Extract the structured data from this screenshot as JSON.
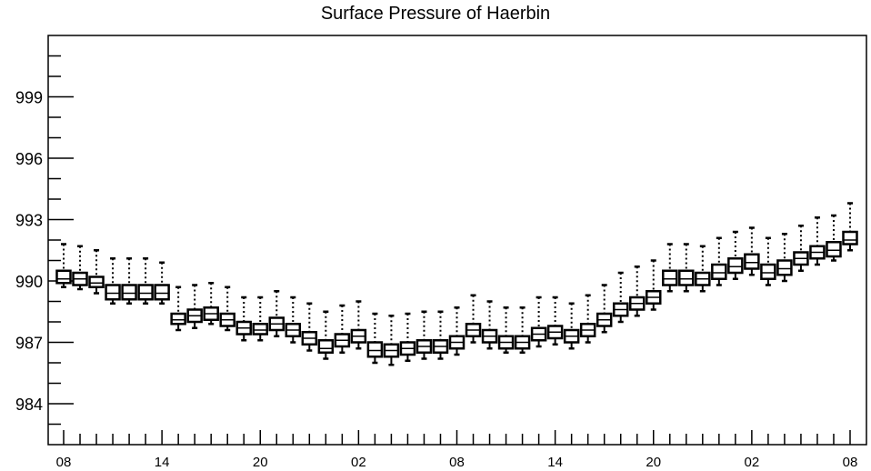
{
  "chart_data": {
    "type": "box",
    "title": "Surface Pressure of Haerbin",
    "xlabel": "",
    "ylabel": "",
    "ylim": [
      982,
      1002
    ],
    "yticks": [
      984,
      987,
      990,
      993,
      996,
      999
    ],
    "xtick_labels": [
      "08",
      "14",
      "20",
      "02",
      "08",
      "14",
      "20",
      "02",
      "08"
    ],
    "x_hours": [
      "08",
      "09",
      "10",
      "11",
      "12",
      "13",
      "14",
      "15",
      "16",
      "17",
      "18",
      "19",
      "20",
      "21",
      "22",
      "23",
      "00",
      "01",
      "02",
      "03",
      "04",
      "05",
      "06",
      "07",
      "08",
      "09",
      "10",
      "11",
      "12",
      "13",
      "14",
      "15",
      "16",
      "17",
      "18",
      "19",
      "20",
      "21",
      "22",
      "23",
      "00",
      "01",
      "02",
      "03",
      "04",
      "05",
      "06",
      "07",
      "08"
    ],
    "series": [
      {
        "median": [
          990.1,
          990.1,
          989.9,
          989.4,
          989.4,
          989.4,
          989.4,
          988.1,
          988.3,
          988.4,
          988.1,
          987.7,
          987.6,
          987.9,
          987.6,
          987.2,
          986.7,
          987.1,
          987.3,
          986.6,
          986.6,
          986.7,
          986.8,
          986.8,
          987.0,
          987.6,
          987.3,
          987.0,
          987.0,
          987.4,
          987.5,
          987.3,
          987.6,
          988.1,
          988.6,
          988.9,
          989.2,
          990.1,
          990.1,
          990.1,
          990.4,
          990.7,
          990.9,
          990.4,
          990.6,
          991.1,
          991.4,
          991.5,
          992.0
        ],
        "q1": [
          989.9,
          989.8,
          989.7,
          989.1,
          989.1,
          989.1,
          989.1,
          987.9,
          988.0,
          988.1,
          987.8,
          987.4,
          987.4,
          987.6,
          987.3,
          986.9,
          986.5,
          986.8,
          987.0,
          986.3,
          986.3,
          986.4,
          986.5,
          986.5,
          986.7,
          987.3,
          987.0,
          986.7,
          986.7,
          987.1,
          987.2,
          987.0,
          987.3,
          987.8,
          988.3,
          988.6,
          988.9,
          989.8,
          989.8,
          989.8,
          990.1,
          990.4,
          990.6,
          990.1,
          990.3,
          990.8,
          991.1,
          991.2,
          991.8
        ],
        "q3": [
          990.5,
          990.4,
          990.2,
          989.8,
          989.8,
          989.8,
          989.8,
          988.4,
          988.6,
          988.7,
          988.4,
          988.0,
          987.9,
          988.2,
          987.9,
          987.5,
          987.1,
          987.4,
          987.6,
          987.0,
          986.9,
          987.0,
          987.1,
          987.1,
          987.3,
          987.9,
          987.6,
          987.3,
          987.3,
          987.7,
          987.8,
          987.6,
          987.9,
          988.4,
          988.9,
          989.2,
          989.5,
          990.5,
          990.5,
          990.4,
          990.8,
          991.1,
          991.3,
          990.8,
          991.0,
          991.4,
          991.7,
          991.9,
          992.4
        ],
        "low": [
          989.7,
          989.6,
          989.4,
          988.9,
          988.9,
          988.9,
          988.9,
          987.6,
          987.7,
          987.9,
          987.6,
          987.1,
          987.1,
          987.3,
          987.0,
          986.6,
          986.2,
          986.5,
          986.7,
          986.0,
          985.9,
          986.1,
          986.2,
          986.2,
          986.4,
          987.0,
          986.7,
          986.5,
          986.5,
          986.8,
          986.9,
          986.7,
          987.0,
          987.5,
          988.0,
          988.3,
          988.6,
          989.5,
          989.5,
          989.5,
          989.8,
          990.1,
          990.3,
          989.8,
          990.0,
          990.5,
          990.8,
          991.0,
          991.5
        ],
        "high": [
          991.8,
          991.7,
          991.5,
          991.1,
          991.1,
          991.1,
          990.9,
          989.7,
          989.8,
          989.9,
          989.7,
          989.2,
          989.2,
          989.5,
          989.2,
          988.9,
          988.5,
          988.8,
          989.0,
          988.4,
          988.3,
          988.4,
          988.5,
          988.5,
          988.7,
          989.3,
          989.0,
          988.7,
          988.7,
          989.2,
          989.2,
          988.9,
          989.3,
          989.8,
          990.4,
          990.7,
          991.0,
          991.8,
          991.8,
          991.7,
          992.1,
          992.4,
          992.6,
          992.1,
          992.3,
          992.7,
          993.1,
          993.2,
          993.8
        ]
      }
    ]
  }
}
